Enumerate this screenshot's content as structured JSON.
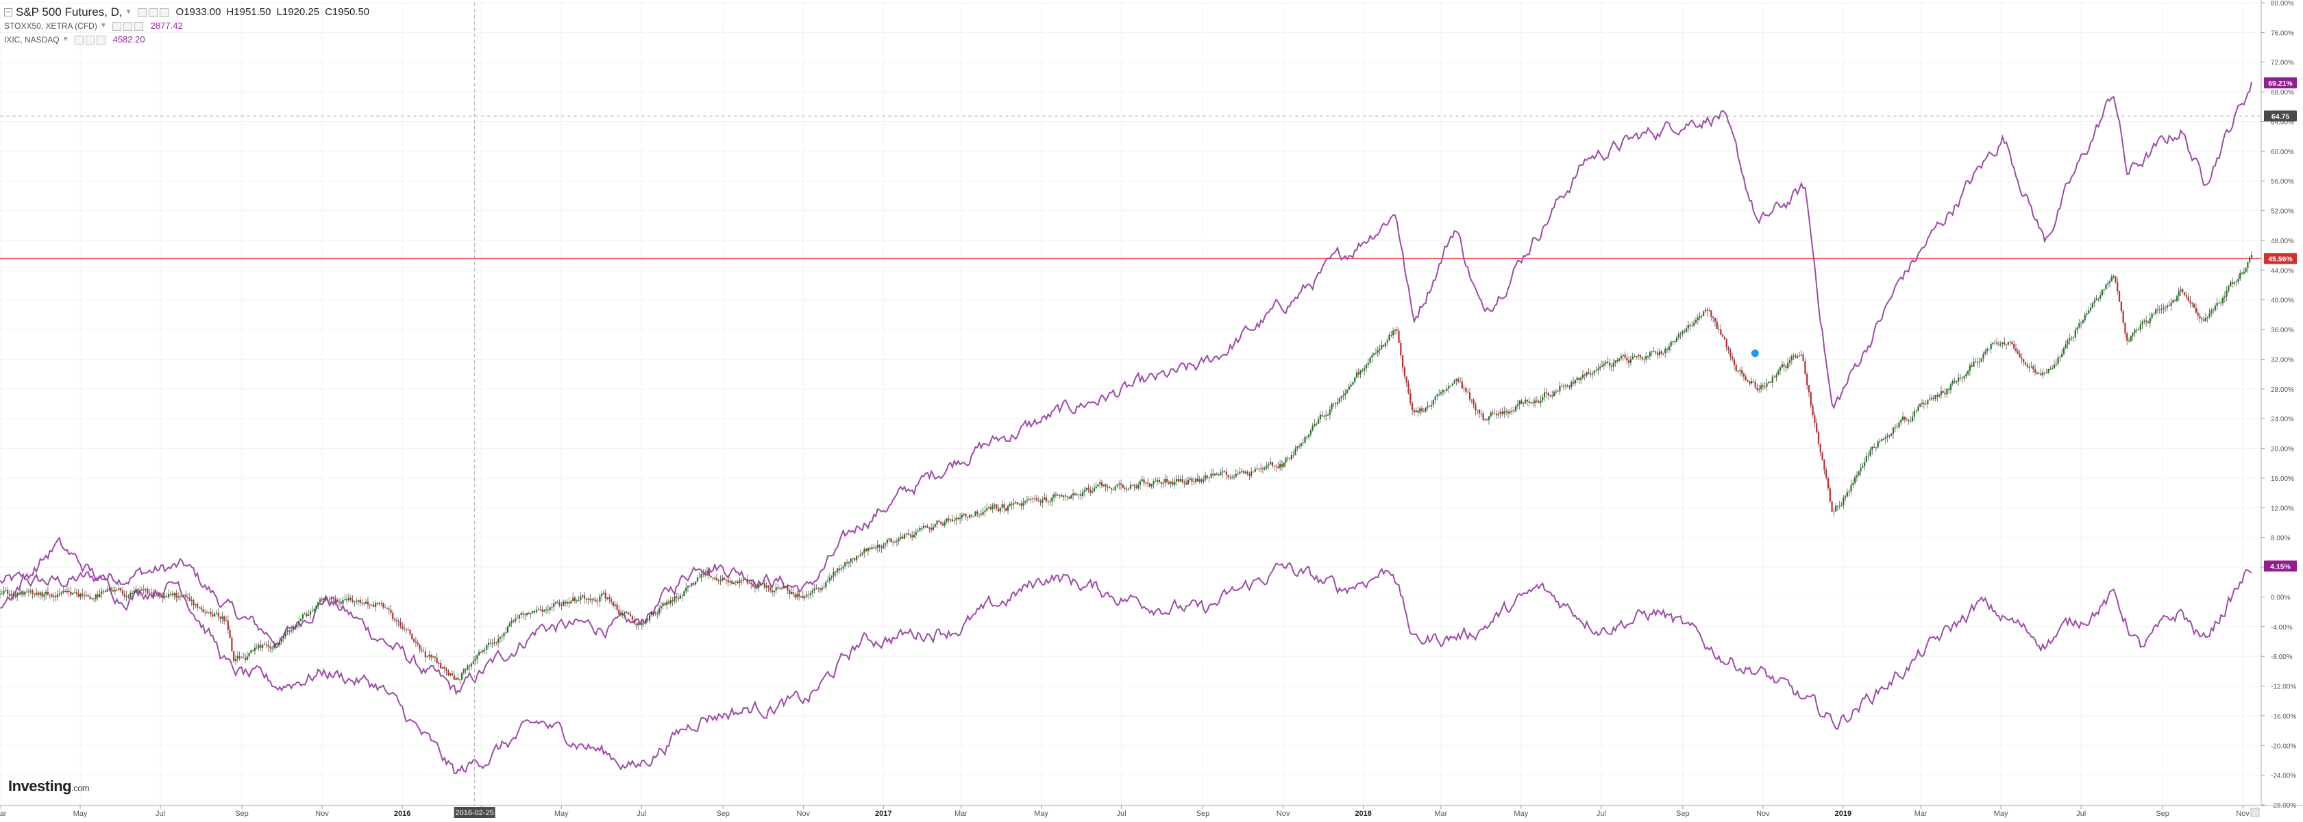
{
  "legend": {
    "main": {
      "title": "S&P 500 Futures, D,",
      "o_label": "O",
      "o": "1933.00",
      "h_label": "H",
      "h": "1951.50",
      "l_label": "L",
      "l": "1920.25",
      "c_label": "C",
      "c": "1950.50"
    },
    "series2": {
      "name": "STOXX50, XETRA (CFD)",
      "value": "2877.42"
    },
    "series3": {
      "name": "IXIC, NASDAQ",
      "value": "4582.20"
    }
  },
  "brand": {
    "name": "Investing",
    "suffix": ".com"
  },
  "crosshair": {
    "date_label": "2016-02-25",
    "price_label": "64.75"
  },
  "reference_line": {
    "label": "45.56%"
  },
  "badges": {
    "nasdaq": "69.21%",
    "stoxx": "4.15%"
  },
  "colors": {
    "up": "#1b7a1b",
    "down": "#c62828",
    "purple": "#9c4ba8",
    "badge_purple": "#8e1f8e",
    "red_line": "#ef5350",
    "badge_red": "#d32f2f",
    "grid": "#f2f2f2",
    "axis_text": "#555555"
  },
  "chart_data": {
    "type": "line",
    "y_axis_unit": "percent",
    "ylim": [
      -28,
      80
    ],
    "y_ticks": [
      "80.00%",
      "76.00%",
      "72.00%",
      "68.00%",
      "64.00%",
      "60.00%",
      "56.00%",
      "52.00%",
      "48.00%",
      "44.00%",
      "40.00%",
      "36.00%",
      "32.00%",
      "28.00%",
      "24.00%",
      "20.00%",
      "16.00%",
      "12.00%",
      "8.00%",
      "4.00%",
      "0.00%",
      "-4.00%",
      "-8.00%",
      "-12.00%",
      "-16.00%",
      "-20.00%",
      "-24.00%",
      "-28.00%"
    ],
    "x_ticks": [
      "Mar",
      "May",
      "Jul",
      "Sep",
      "Nov",
      "2016",
      "Mar",
      "May",
      "Jul",
      "Sep",
      "Nov",
      "2017",
      "Mar",
      "May",
      "Jul",
      "Sep",
      "Nov",
      "2018",
      "Mar",
      "May",
      "Jul",
      "Sep",
      "Nov",
      "2019",
      "Mar",
      "May",
      "Jul",
      "Sep",
      "Nov"
    ],
    "x_tick_dates": [
      "2015-03-01",
      "2015-05-01",
      "2015-07-01",
      "2015-09-01",
      "2015-11-01",
      "2016-01-01",
      "2016-03-01",
      "2016-05-01",
      "2016-07-01",
      "2016-09-01",
      "2016-11-01",
      "2017-01-01",
      "2017-03-01",
      "2017-05-01",
      "2017-07-01",
      "2017-09-01",
      "2017-11-01",
      "2018-01-01",
      "2018-03-01",
      "2018-05-01",
      "2018-07-01",
      "2018-09-01",
      "2018-11-01",
      "2019-01-01",
      "2019-03-01",
      "2019-05-01",
      "2019-07-01",
      "2019-09-01",
      "2019-11-01"
    ],
    "x_range": [
      "2015-03-01",
      "2019-11-15"
    ],
    "grid": true,
    "reference_line_y": 45.56,
    "crosshair_y": 64.75,
    "crosshair_date": "2016-02-25",
    "series": [
      {
        "name": "S&P 500 Futures",
        "style": "candles",
        "dates": [
          "2015-03-01",
          "2015-04-15",
          "2015-06-01",
          "2015-07-15",
          "2015-08-20",
          "2015-08-26",
          "2015-09-30",
          "2015-11-03",
          "2015-12-15",
          "2016-01-20",
          "2016-02-11",
          "2016-04-01",
          "2016-06-01",
          "2016-06-27",
          "2016-08-15",
          "2016-10-01",
          "2016-11-04",
          "2016-12-15",
          "2017-03-01",
          "2017-05-01",
          "2017-07-01",
          "2017-09-01",
          "2017-11-01",
          "2018-01-26",
          "2018-02-08",
          "2018-03-15",
          "2018-04-02",
          "2018-05-15",
          "2018-07-01",
          "2018-08-15",
          "2018-09-20",
          "2018-10-11",
          "2018-10-29",
          "2018-11-30",
          "2018-12-24",
          "2019-01-31",
          "2019-03-15",
          "2019-05-01",
          "2019-06-03",
          "2019-07-26",
          "2019-08-05",
          "2019-09-15",
          "2019-10-02",
          "2019-11-08"
        ],
        "values": [
          0.5,
          0,
          0.5,
          0,
          -3,
          -9,
          -6,
          0,
          -1,
          -8,
          -11,
          -2,
          0.5,
          -4,
          2.5,
          1.5,
          0,
          6,
          11,
          13,
          15,
          16,
          18,
          36,
          24,
          29,
          24,
          27,
          31,
          33,
          39,
          31,
          28,
          33,
          11,
          22,
          27,
          35,
          30,
          43,
          35,
          41,
          37,
          45.5
        ]
      },
      {
        "name": "IXIC, NASDAQ",
        "dates": [
          "2015-03-01",
          "2015-04-15",
          "2015-06-01",
          "2015-07-20",
          "2015-08-24",
          "2015-09-30",
          "2015-11-03",
          "2016-02-11",
          "2016-04-15",
          "2016-06-27",
          "2016-08-15",
          "2016-11-04",
          "2016-12-15",
          "2017-03-01",
          "2017-06-01",
          "2017-09-01",
          "2017-11-15",
          "2018-01-26",
          "2018-02-08",
          "2018-03-12",
          "2018-04-02",
          "2018-06-20",
          "2018-08-30",
          "2018-10-01",
          "2018-10-29",
          "2018-12-03",
          "2018-12-24",
          "2019-02-15",
          "2019-05-03",
          "2019-06-03",
          "2019-07-26",
          "2019-08-05",
          "2019-09-15",
          "2019-10-02",
          "2019-11-08"
        ],
        "values": [
          2,
          2,
          3,
          4,
          -2,
          -6,
          0,
          -13,
          -4,
          -4,
          5,
          1,
          10,
          19,
          26,
          31,
          41,
          52,
          37,
          50,
          38,
          59,
          64,
          65,
          50,
          55,
          25,
          43,
          62,
          48,
          68,
          57,
          63,
          56,
          69.21
        ]
      },
      {
        "name": "STOXX50, XETRA (CFD)",
        "dates": [
          "2015-03-01",
          "2015-04-13",
          "2015-06-01",
          "2015-07-15",
          "2015-08-24",
          "2015-09-29",
          "2015-11-03",
          "2015-12-15",
          "2016-02-11",
          "2016-04-15",
          "2016-06-27",
          "2016-08-15",
          "2016-11-04",
          "2016-12-15",
          "2017-03-01",
          "2017-05-08",
          "2017-07-01",
          "2017-09-01",
          "2017-11-01",
          "2017-12-15",
          "2018-01-24",
          "2018-02-08",
          "2018-03-23",
          "2018-05-15",
          "2018-07-01",
          "2018-08-15",
          "2018-10-01",
          "2018-10-29",
          "2018-12-27",
          "2019-02-15",
          "2019-04-15",
          "2019-06-03",
          "2019-07-26",
          "2019-08-15",
          "2019-09-15",
          "2019-10-02",
          "2019-11-08"
        ],
        "values": [
          -1,
          7,
          0,
          2,
          -10,
          -12,
          -10,
          -12,
          -24,
          -17,
          -23,
          -16,
          -14,
          -6,
          -4,
          3,
          0,
          -2,
          4,
          1,
          4,
          -6,
          -5,
          1,
          -4,
          -2,
          -8,
          -10,
          -17,
          -10,
          -1,
          -6,
          0,
          -7,
          -2,
          -6,
          4.15
        ]
      }
    ]
  }
}
